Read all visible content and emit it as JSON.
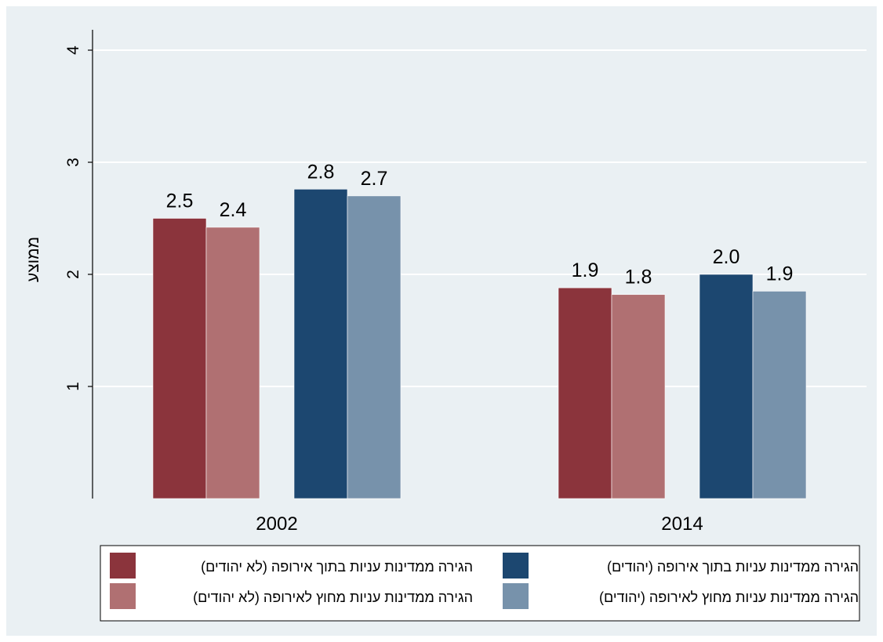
{
  "chart_data": {
    "type": "bar",
    "categories": [
      "2002",
      "2014"
    ],
    "ylabel": "ממוצע",
    "xlabel": "",
    "title": "",
    "ylim": [
      0,
      4
    ],
    "yticks": [
      1,
      2,
      3,
      4
    ],
    "grid": true,
    "legend_position": "bottom",
    "series": [
      {
        "name": "הגירה ממדינות עניות בתוך אירופה (לא יהודים)",
        "color": "#8b343c",
        "values": [
          2.5,
          1.88
        ],
        "labels": [
          "2.5",
          "1.9"
        ]
      },
      {
        "name": "הגירה ממדינות עניות מחוץ לאירופה (לא יהודים)",
        "color": "#b07072",
        "values": [
          2.42,
          1.82
        ],
        "labels": [
          "2.4",
          "1.8"
        ]
      },
      {
        "name": "הגירה ממדינות עניות בתוך אירופה (יהודים)",
        "color": "#1c4770",
        "values": [
          2.76,
          2.0
        ],
        "labels": [
          "2.8",
          "2.0"
        ]
      },
      {
        "name": "הגירה ממדינות עניות מחוץ לאירופה (יהודים)",
        "color": "#7792ab",
        "values": [
          2.7,
          1.85
        ],
        "labels": [
          "2.7",
          "1.9"
        ]
      }
    ]
  }
}
